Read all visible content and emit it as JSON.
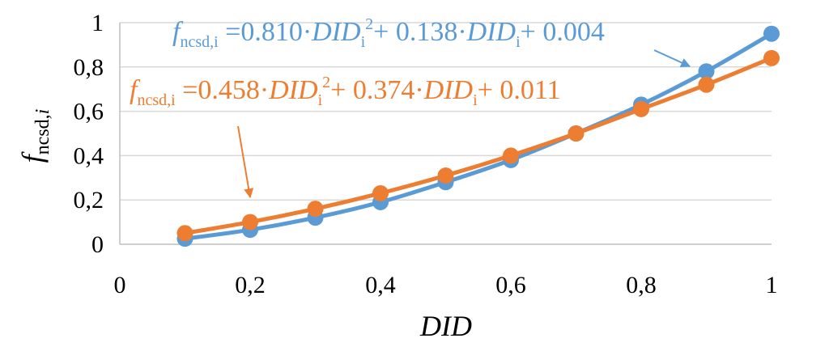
{
  "chart_data": {
    "type": "line",
    "xlabel": "DID",
    "ylabel": "fncsd,i",
    "ylabel_parts": {
      "main": "f",
      "sub": "ncsd,",
      "sub_italic": "i"
    },
    "xlim": [
      0,
      1
    ],
    "ylim": [
      0,
      1
    ],
    "x_ticks": [
      "0",
      "0,2",
      "0,4",
      "0,6",
      "0,8",
      "1"
    ],
    "y_ticks": [
      "0",
      "0,2",
      "0,4",
      "0,6",
      "0,8",
      "1"
    ],
    "grid": true,
    "series": [
      {
        "color": "#5b9bd5",
        "x": [
          0.1,
          0.2,
          0.3,
          0.4,
          0.5,
          0.6,
          0.7,
          0.8,
          0.9,
          1.0
        ],
        "y": [
          0.025,
          0.065,
          0.12,
          0.19,
          0.28,
          0.38,
          0.5,
          0.63,
          0.78,
          0.95
        ]
      },
      {
        "color": "#ed7d31",
        "x": [
          0.1,
          0.2,
          0.3,
          0.4,
          0.5,
          0.6,
          0.7,
          0.8,
          0.9,
          1.0
        ],
        "y": [
          0.05,
          0.1,
          0.16,
          0.23,
          0.31,
          0.4,
          0.5,
          0.61,
          0.72,
          0.84
        ]
      }
    ],
    "annotations": [
      {
        "color": "#5b9bd5",
        "text": "fncsd,i =0.810·DIDi2+ 0.138·DIDi+ 0.004",
        "parts": {
          "f": "f",
          "sub": "ncsd,i",
          "eq": " =0.810·",
          "did1": "DID",
          "i1": "i",
          "sq": "2",
          "plus1": "+ 0.138·",
          "did2": "DID",
          "i2": "i",
          "plus2": "+ 0.004"
        }
      },
      {
        "color": "#ed7d31",
        "text": "fncsd,i =0.458·DIDi2+ 0.374·DIDi+ 0.011",
        "parts": {
          "f": "f",
          "sub": "ncsd,i",
          "eq": " =0.458·",
          "did1": "DID",
          "i1": "i",
          "sq": "2",
          "plus1": "+ 0.374·",
          "did2": "DID",
          "i2": "i",
          "plus2": "+ 0.011"
        }
      }
    ]
  }
}
